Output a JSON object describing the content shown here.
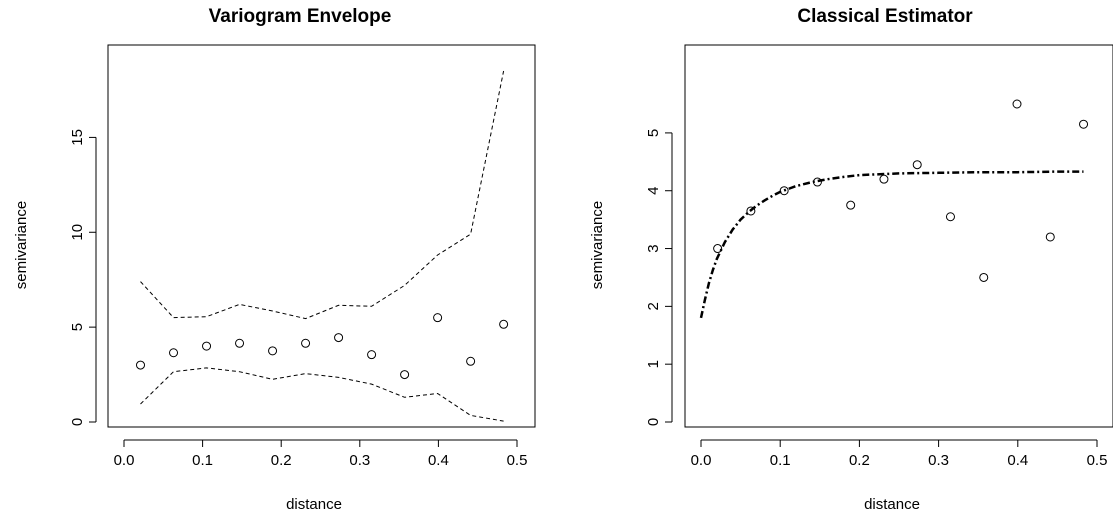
{
  "chart_data": [
    {
      "type": "scatter",
      "title": "Variogram Envelope",
      "xlabel": "distance",
      "ylabel": "semivariance",
      "xlim": [
        0.0,
        0.5
      ],
      "ylim": [
        0,
        18.5
      ],
      "xticks": [
        "0.0",
        "0.1",
        "0.2",
        "0.3",
        "0.4",
        "0.5"
      ],
      "yticks": [
        "0",
        "5",
        "10",
        "15"
      ],
      "grid": false,
      "points": {
        "x": [
          0.021,
          0.063,
          0.105,
          0.147,
          0.189,
          0.231,
          0.273,
          0.315,
          0.357,
          0.399,
          0.441,
          0.483
        ],
        "y": [
          3.0,
          3.65,
          4.0,
          4.15,
          3.75,
          4.15,
          4.45,
          3.55,
          2.5,
          5.5,
          3.2,
          5.15
        ]
      },
      "upper_envelope": {
        "x": [
          0.021,
          0.063,
          0.105,
          0.147,
          0.189,
          0.231,
          0.273,
          0.315,
          0.357,
          0.399,
          0.441,
          0.483
        ],
        "y": [
          7.4,
          5.5,
          5.55,
          6.2,
          5.85,
          5.45,
          6.15,
          6.1,
          7.2,
          8.8,
          9.9,
          18.5
        ]
      },
      "lower_envelope": {
        "x": [
          0.021,
          0.063,
          0.105,
          0.147,
          0.189,
          0.231,
          0.273,
          0.315,
          0.357,
          0.399,
          0.441,
          0.483
        ],
        "y": [
          0.95,
          2.65,
          2.85,
          2.65,
          2.25,
          2.55,
          2.35,
          2.0,
          1.3,
          1.5,
          0.35,
          0.05
        ]
      }
    },
    {
      "type": "scatter",
      "title": "Classical Estimator",
      "xlabel": "distance",
      "ylabel": "semivariance",
      "xlim": [
        0.0,
        0.5
      ],
      "ylim": [
        0,
        5.5
      ],
      "xticks": [
        "0.0",
        "0.1",
        "0.2",
        "0.3",
        "0.4",
        "0.5"
      ],
      "yticks": [
        "0",
        "1",
        "2",
        "3",
        "4",
        "5"
      ],
      "grid": false,
      "points": {
        "x": [
          0.021,
          0.063,
          0.105,
          0.147,
          0.189,
          0.231,
          0.273,
          0.315,
          0.357,
          0.399,
          0.441,
          0.483
        ],
        "y": [
          3.0,
          3.65,
          4.0,
          4.15,
          3.75,
          4.2,
          4.45,
          3.55,
          2.5,
          5.5,
          3.2,
          5.15
        ]
      },
      "fitted_curve": {
        "x": [
          0.0,
          0.005,
          0.01,
          0.015,
          0.02,
          0.03,
          0.04,
          0.05,
          0.06,
          0.07,
          0.08,
          0.09,
          0.1,
          0.12,
          0.14,
          0.16,
          0.18,
          0.2,
          0.25,
          0.3,
          0.35,
          0.4,
          0.45,
          0.483
        ],
        "y": [
          1.8,
          2.12,
          2.4,
          2.63,
          2.82,
          3.11,
          3.33,
          3.5,
          3.63,
          3.74,
          3.83,
          3.91,
          3.98,
          4.08,
          4.15,
          4.2,
          4.24,
          4.27,
          4.3,
          4.31,
          4.32,
          4.32,
          4.33,
          4.33
        ]
      }
    }
  ]
}
